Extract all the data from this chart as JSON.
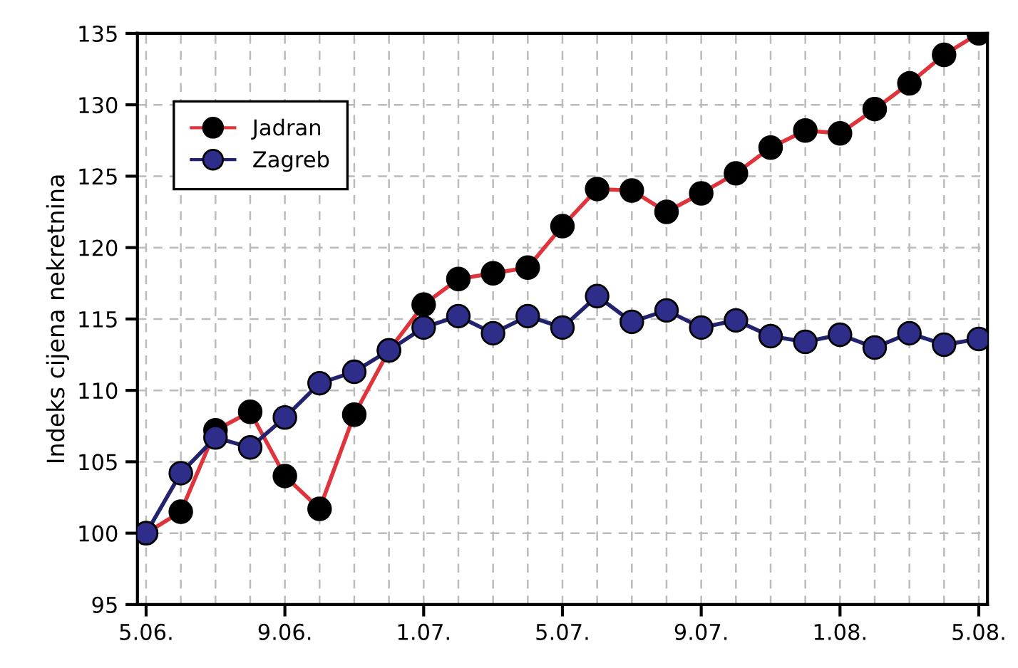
{
  "chart_data": {
    "type": "line",
    "ylabel": "Indeks cijena nekretnina",
    "categories": [
      "5.06.",
      null,
      null,
      null,
      "9.06.",
      null,
      null,
      null,
      "1.07.",
      null,
      null,
      null,
      "5.07.",
      null,
      null,
      null,
      "9.07.",
      null,
      null,
      null,
      "1.08.",
      null,
      null,
      null,
      "5.08."
    ],
    "series": [
      {
        "name": "Jadran",
        "color": "#e0343c",
        "colors": [
          "#000000",
          "#000000",
          "#000000",
          "#000000",
          "#000000",
          "#000000",
          "#000000",
          "#000000",
          "#000000",
          "#000000",
          "#000000",
          "#000000",
          "#000000",
          "#000000",
          "#000000",
          "#000000",
          "#000000",
          "#000000",
          "#000000",
          "#000000",
          "#000000",
          "#000000",
          "#000000",
          "#000000",
          "#000000"
        ],
        "values": [
          100,
          101.5,
          107.2,
          108.5,
          104,
          101.7,
          108.3,
          112.8,
          116,
          117.8,
          118.2,
          118.6,
          121.5,
          124.1,
          124,
          122.5,
          123.8,
          125.2,
          127,
          128.2,
          128,
          129.7,
          131.5,
          133.5,
          135
        ]
      },
      {
        "name": "Zagreb",
        "color": "#22226e",
        "colors": [
          "#2e2e8a",
          "#2e2e8a",
          "#2e2e8a",
          "#2e2e8a",
          "#2e2e8a",
          "#2e2e8a",
          "#2e2e8a",
          "#2e2e8a",
          "#2e2e8a",
          "#2e2e8a",
          "#2e2e8a",
          "#2e2e8a",
          "#2e2e8a",
          "#2e2e8a",
          "#2e2e8a",
          "#2e2e8a",
          "#2e2e8a",
          "#2e2e8a",
          "#2e2e8a",
          "#2e2e8a",
          "#2e2e8a",
          "#2e2e8a",
          "#2e2e8a",
          "#2e2e8a",
          "#2e2e8a"
        ],
        "values": [
          100,
          104.2,
          106.7,
          106,
          108.1,
          110.5,
          111.3,
          112.8,
          114.4,
          115.2,
          114,
          115.2,
          114.4,
          116.6,
          114.8,
          115.6,
          114.4,
          114.9,
          113.8,
          113.4,
          113.9,
          113,
          114,
          113.2,
          113.6
        ]
      }
    ],
    "ylim": [
      95,
      135
    ],
    "yticks": [
      95,
      100,
      105,
      110,
      115,
      120,
      125,
      130,
      135
    ],
    "grid": true,
    "legend": "top left",
    "marker": "circle",
    "line_style": "solid"
  }
}
